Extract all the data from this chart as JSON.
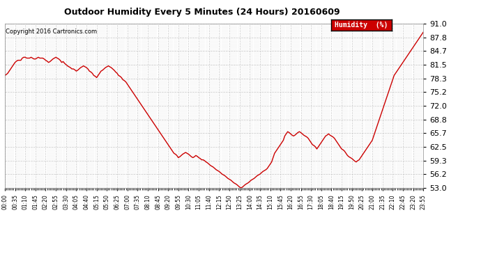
{
  "title": "Outdoor Humidity Every 5 Minutes (24 Hours) 20160609",
  "copyright": "Copyright 2016 Cartronics.com",
  "legend_label": "Humidity  (%)",
  "line_color": "#cc0000",
  "background_color": "#ffffff",
  "grid_color": "#bbbbbb",
  "ylim": [
    53.0,
    91.0
  ],
  "yticks": [
    53.0,
    56.2,
    59.3,
    62.5,
    65.7,
    68.8,
    72.0,
    75.2,
    78.3,
    81.5,
    84.7,
    87.8,
    91.0
  ],
  "x_tick_step_min": 35,
  "total_minutes": 1440,
  "humidity_data": [
    79.0,
    79.2,
    79.5,
    80.0,
    80.5,
    81.0,
    81.5,
    82.0,
    82.3,
    82.5,
    82.5,
    82.5,
    83.0,
    83.2,
    83.2,
    83.0,
    83.0,
    83.0,
    83.2,
    83.0,
    82.8,
    82.8,
    83.0,
    83.2,
    83.0,
    83.0,
    83.0,
    82.8,
    82.5,
    82.3,
    82.0,
    82.2,
    82.5,
    82.8,
    83.0,
    83.2,
    83.0,
    82.8,
    82.5,
    82.0,
    82.2,
    81.8,
    81.5,
    81.2,
    81.0,
    80.8,
    80.5,
    80.5,
    80.3,
    80.0,
    80.2,
    80.5,
    80.8,
    81.0,
    81.2,
    81.0,
    80.8,
    80.5,
    80.0,
    79.8,
    79.5,
    79.0,
    78.8,
    78.5,
    79.0,
    79.5,
    80.0,
    80.2,
    80.5,
    80.8,
    81.0,
    81.2,
    81.0,
    80.8,
    80.5,
    80.2,
    79.8,
    79.5,
    79.0,
    78.8,
    78.5,
    78.0,
    77.8,
    77.5,
    77.0,
    76.5,
    76.0,
    75.5,
    75.0,
    74.5,
    74.0,
    73.5,
    73.0,
    72.5,
    72.0,
    71.5,
    71.0,
    70.5,
    70.0,
    69.5,
    69.0,
    68.5,
    68.0,
    67.5,
    67.0,
    66.5,
    66.0,
    65.5,
    65.0,
    64.5,
    64.0,
    63.5,
    63.0,
    62.5,
    62.0,
    61.5,
    61.0,
    60.8,
    60.5,
    60.0,
    60.2,
    60.5,
    60.8,
    61.0,
    61.2,
    61.0,
    60.8,
    60.5,
    60.2,
    60.0,
    60.2,
    60.5,
    60.3,
    60.0,
    59.8,
    59.5,
    59.5,
    59.3,
    59.0,
    58.8,
    58.5,
    58.2,
    58.0,
    57.8,
    57.5,
    57.2,
    57.0,
    56.8,
    56.5,
    56.2,
    56.0,
    55.8,
    55.5,
    55.2,
    55.0,
    54.8,
    54.5,
    54.2,
    54.0,
    53.8,
    53.5,
    53.2,
    53.0,
    53.2,
    53.5,
    53.8,
    54.0,
    54.2,
    54.5,
    54.8,
    55.0,
    55.2,
    55.5,
    55.8,
    56.0,
    56.2,
    56.5,
    56.8,
    57.0,
    57.2,
    57.5,
    58.0,
    58.5,
    59.0,
    60.0,
    61.0,
    61.5,
    62.0,
    62.5,
    63.0,
    63.5,
    64.0,
    65.0,
    65.5,
    66.0,
    65.8,
    65.5,
    65.2,
    65.0,
    65.2,
    65.5,
    65.8,
    66.0,
    65.8,
    65.5,
    65.2,
    65.0,
    64.8,
    64.5,
    64.0,
    63.5,
    63.0,
    62.8,
    62.5,
    62.0,
    62.5,
    63.0,
    63.5,
    64.0,
    64.5,
    65.0,
    65.2,
    65.5,
    65.2,
    65.0,
    64.8,
    64.5,
    64.0,
    63.5,
    63.0,
    62.5,
    62.0,
    61.8,
    61.5,
    61.0,
    60.5,
    60.2,
    60.0,
    59.8,
    59.5,
    59.2,
    59.0,
    59.3,
    59.5,
    60.0,
    60.5,
    61.0,
    61.5,
    62.0,
    62.5,
    63.0,
    63.5,
    64.0,
    65.0,
    66.0,
    67.0,
    68.0,
    69.0,
    70.0,
    71.0,
    72.0,
    73.0,
    74.0,
    75.0,
    76.0,
    77.0,
    78.0,
    79.0,
    79.5,
    80.0,
    80.5,
    81.0,
    81.5,
    82.0,
    82.5,
    83.0,
    83.5,
    84.0,
    84.5,
    85.0,
    85.5,
    86.0,
    86.5,
    87.0,
    87.5,
    88.0,
    88.5,
    89.0,
    89.5,
    90.0,
    90.5,
    91.0
  ]
}
